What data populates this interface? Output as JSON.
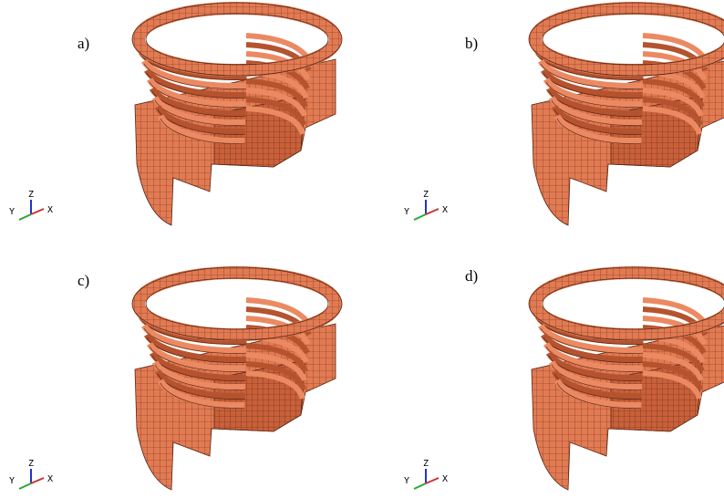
{
  "panels": [
    {
      "label": "a)",
      "axes": {
        "z": "Z",
        "y": "Y",
        "x": "X"
      }
    },
    {
      "label": "b)",
      "axes": {
        "z": "Z",
        "y": "Y",
        "x": "X"
      }
    },
    {
      "label": "c)",
      "axes": {
        "z": "Z",
        "y": "Y",
        "x": "X"
      }
    },
    {
      "label": "d)",
      "axes": {
        "z": "Z",
        "y": "Y",
        "x": "X"
      }
    }
  ]
}
